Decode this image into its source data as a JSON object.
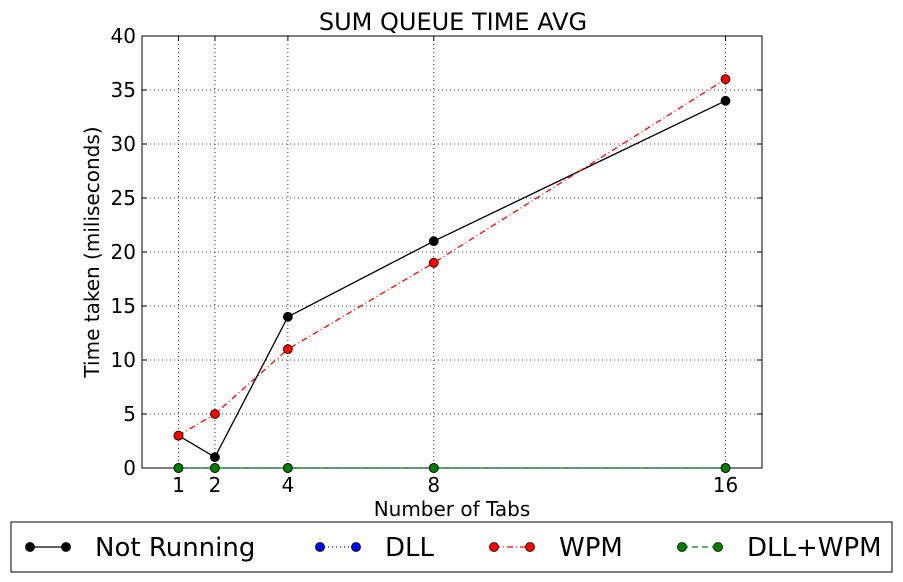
{
  "chart_data": {
    "type": "line",
    "title": "SUM QUEUE TIME AVG",
    "xlabel": "Number of Tabs",
    "ylabel": "Time taken (miliseconds)",
    "x": [
      1,
      2,
      4,
      8,
      16
    ],
    "xticks": [
      1,
      2,
      4,
      8,
      16
    ],
    "yticks": [
      0,
      5,
      10,
      15,
      20,
      25,
      30,
      35,
      40
    ],
    "xlim": [
      0,
      17
    ],
    "ylim": [
      0,
      40
    ],
    "grid": true,
    "legend_position": "bottom-outside",
    "series": [
      {
        "name": "Not Running",
        "values": [
          3,
          1,
          14,
          21,
          34
        ],
        "color": "#000000",
        "dash": "solid",
        "linestyle": "solid"
      },
      {
        "name": "DLL",
        "values": [
          0,
          0,
          0,
          0,
          0
        ],
        "color": "#0000ff",
        "dash": "dotted",
        "linestyle": "dotted"
      },
      {
        "name": "WPM",
        "values": [
          3,
          5,
          11,
          19,
          36
        ],
        "color": "#ff0000",
        "dash": "dashdot",
        "linestyle": "dashdot"
      },
      {
        "name": "DLL+WPM",
        "values": [
          0,
          0,
          0,
          0,
          0
        ],
        "color": "#007f00",
        "dash": "dashed",
        "linestyle": "dashed"
      }
    ]
  }
}
